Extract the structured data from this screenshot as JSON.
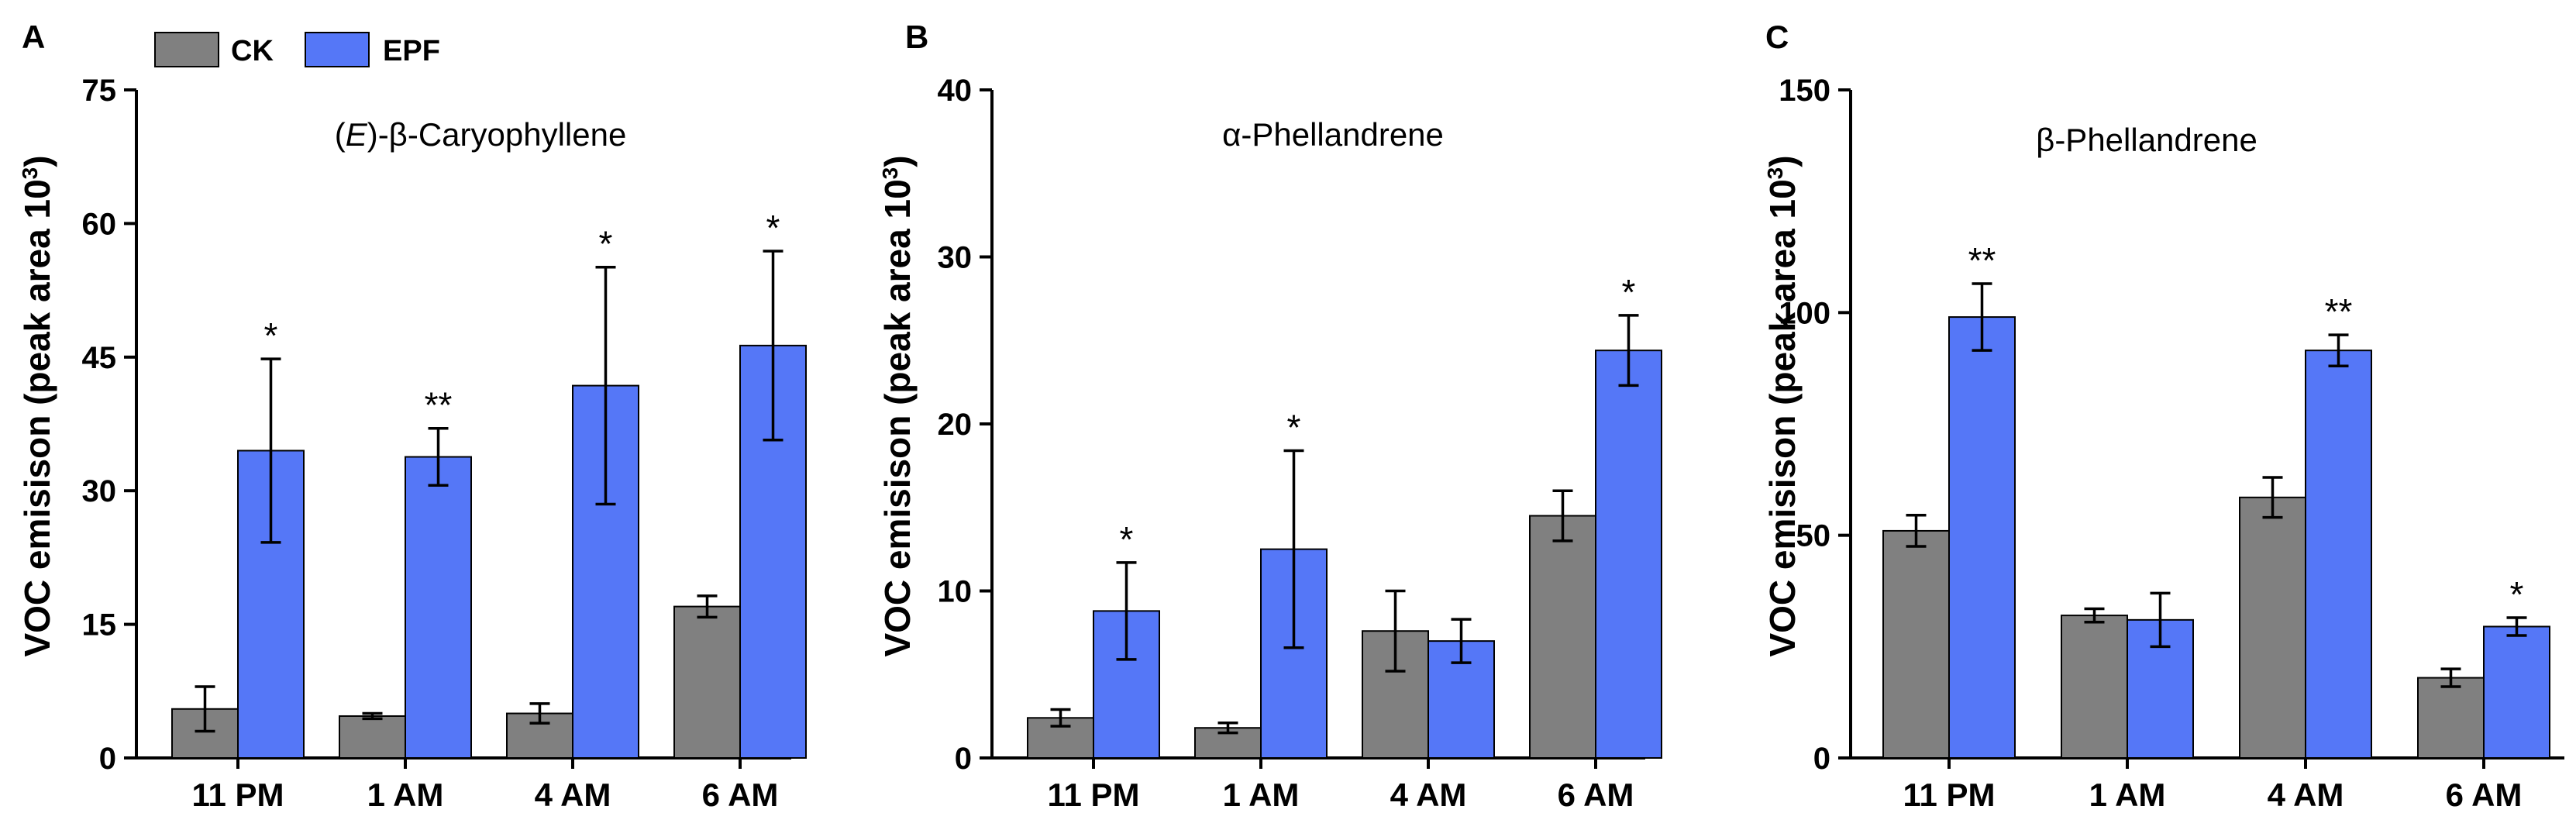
{
  "legend": [
    {
      "name": "CK",
      "color": "#808080"
    },
    {
      "name": "EPF",
      "color": "#5577f7"
    }
  ],
  "chart_data": [
    {
      "type": "bar",
      "panel": "A",
      "title_parts": [
        "(",
        "E",
        ")-β-Caryophyllene"
      ],
      "ylabel": "VOC emisison (peak area 10",
      "ylabel_sup": "3",
      "ylabel_close": ")",
      "ylim": [
        0,
        75
      ],
      "yticks": [
        0,
        15,
        30,
        45,
        60,
        75
      ],
      "categories": [
        "11 PM",
        "1 AM",
        "4 AM",
        "6 AM"
      ],
      "series": [
        {
          "name": "CK",
          "values": [
            5.5,
            4.7,
            5.0,
            17.0
          ],
          "errors": [
            2.5,
            0.3,
            1.1,
            1.2
          ]
        },
        {
          "name": "EPF",
          "values": [
            34.5,
            33.8,
            41.8,
            46.3
          ],
          "errors": [
            10.3,
            3.2,
            13.3,
            10.6
          ]
        }
      ],
      "significance": [
        "*",
        "**",
        "*",
        "*"
      ]
    },
    {
      "type": "bar",
      "panel": "B",
      "title": "α-Phellandrene",
      "ylabel": "VOC emisison (peak area 10",
      "ylabel_sup": "3",
      "ylabel_close": ")",
      "ylim": [
        0,
        40
      ],
      "yticks": [
        0,
        10,
        20,
        30,
        40
      ],
      "categories": [
        "11 PM",
        "1 AM",
        "4 AM",
        "6 AM"
      ],
      "series": [
        {
          "name": "CK",
          "values": [
            2.4,
            1.8,
            7.6,
            14.5
          ],
          "errors": [
            0.5,
            0.3,
            2.4,
            1.5
          ]
        },
        {
          "name": "EPF",
          "values": [
            8.8,
            12.5,
            7.0,
            24.4
          ],
          "errors": [
            2.9,
            5.9,
            1.3,
            2.1
          ]
        }
      ],
      "significance": [
        "*",
        "*",
        "",
        "*"
      ]
    },
    {
      "type": "bar",
      "panel": "C",
      "title": "β-Phellandrene",
      "ylabel": "VOC emisison (peak area 10",
      "ylabel_sup": "3",
      "ylabel_close": ")",
      "ylim": [
        0,
        150
      ],
      "yticks": [
        0,
        50,
        100,
        150
      ],
      "categories": [
        "11 PM",
        "1 AM",
        "4 AM",
        "6 AM"
      ],
      "series": [
        {
          "name": "CK",
          "values": [
            51,
            32,
            58.5,
            18
          ],
          "errors": [
            3.5,
            1.5,
            4.5,
            2
          ]
        },
        {
          "name": "EPF",
          "values": [
            99,
            31,
            91.5,
            29.5
          ],
          "errors": [
            7.5,
            6,
            3.5,
            2
          ]
        }
      ],
      "significance": [
        "**",
        "",
        "**",
        "*"
      ]
    }
  ]
}
